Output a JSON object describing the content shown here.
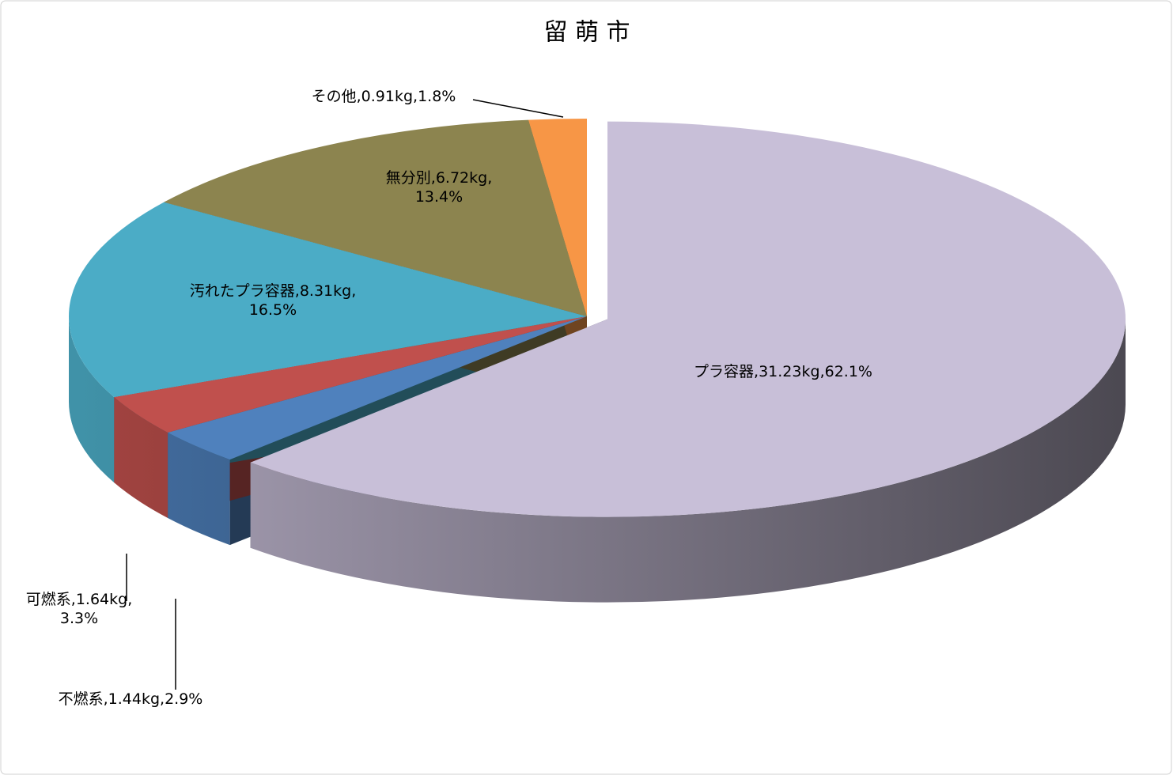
{
  "chart_data": {
    "type": "pie3d",
    "title": "留 萌 市",
    "categories": [
      "プラ容器",
      "不燃系",
      "可燃系",
      "汚れたプラ容器",
      "無分別",
      "その他"
    ],
    "values": [
      62.1,
      2.9,
      3.3,
      16.5,
      13.4,
      1.8
    ],
    "value_labels": [
      "62.1%",
      "2.9%",
      "3.3%",
      "16.5%",
      "13.4%",
      "1.8%"
    ],
    "weights": [
      31.23,
      1.44,
      1.64,
      8.31,
      6.72,
      0.91
    ],
    "weight_labels": [
      "31.23kg",
      "1.44kg",
      "1.64kg",
      "8.31kg",
      "6.72kg",
      "0.91kg"
    ],
    "label_separator": ",",
    "colors": [
      "#c8bfd8",
      "#4f81bd",
      "#c0504d",
      "#4bacc6",
      "#8c844f",
      "#f79646"
    ]
  }
}
